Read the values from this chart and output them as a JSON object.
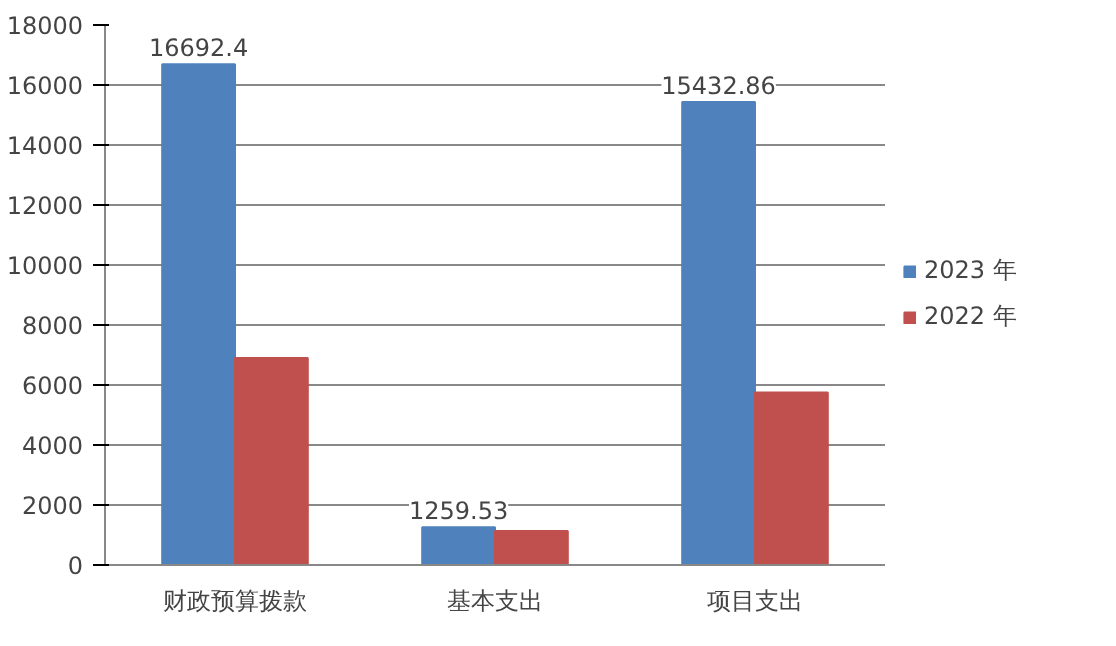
{
  "chart_data": {
    "type": "bar",
    "categories": [
      "财政预算拨款",
      "基本支出",
      "项目支出"
    ],
    "series": [
      {
        "name": "2023 年",
        "color": "#4f81bd",
        "values": [
          16692.4,
          1259.53,
          15432.86
        ],
        "value_labels": [
          "16692.4",
          "1259.53",
          "15432.86"
        ]
      },
      {
        "name": "2022 年",
        "color": "#c0504d",
        "values": [
          6900,
          1130,
          5750
        ]
      }
    ],
    "ylim": [
      0,
      18000
    ],
    "yticks": [
      0,
      2000,
      4000,
      6000,
      8000,
      10000,
      12000,
      14000,
      16000,
      18000
    ],
    "grid": "y",
    "legend": "right"
  }
}
